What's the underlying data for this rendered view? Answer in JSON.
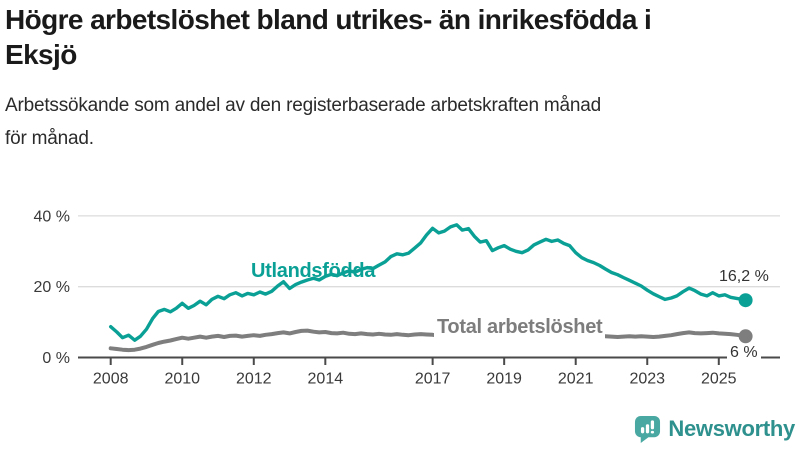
{
  "header": {
    "title_lines": [
      "Högre arbetslöshet bland utrikes- än inrikesfödda i",
      "Eksjö"
    ],
    "subtitle_lines": [
      "Arbetssökande som andel av den registerbaserade arbetskraften månad",
      "för månad."
    ]
  },
  "colors": {
    "accent_teal": "#0aa096",
    "line_gray": "#7e7e7e",
    "axis": "#4a4a4a",
    "grid": "#dcdcdc",
    "tick_text": "#3a3a3a",
    "logo_icon": "#4aa8a2",
    "logo_text": "#2f918e"
  },
  "branding": {
    "logo_text": "Newsworthy"
  },
  "chart_data": {
    "type": "line",
    "title": "Högre arbetslöshet bland utrikes- än inrikesfödda i Eksjö",
    "xlabel": "",
    "ylabel": "",
    "grid": "horizontal",
    "legend_position": "inline-labels",
    "x_axis": {
      "ticks": [
        2008,
        2010,
        2012,
        2014,
        2017,
        2019,
        2021,
        2023,
        2025
      ],
      "labels": [
        "2008",
        "2010",
        "2012",
        "2014",
        "2017",
        "2019",
        "2021",
        "2023",
        "2025"
      ]
    },
    "y_axis": {
      "ticks": [
        0,
        20,
        40
      ],
      "labels": [
        "0 %",
        "20 %",
        "40 %"
      ],
      "range": [
        0,
        42
      ],
      "unit": "%"
    },
    "x": [
      2008.0,
      2008.17,
      2008.33,
      2008.5,
      2008.67,
      2008.83,
      2009.0,
      2009.17,
      2009.33,
      2009.5,
      2009.67,
      2009.83,
      2010.0,
      2010.17,
      2010.33,
      2010.5,
      2010.67,
      2010.83,
      2011.0,
      2011.17,
      2011.33,
      2011.5,
      2011.67,
      2011.83,
      2012.0,
      2012.17,
      2012.33,
      2012.5,
      2012.67,
      2012.83,
      2013.0,
      2013.17,
      2013.33,
      2013.5,
      2013.67,
      2013.83,
      2014.0,
      2014.17,
      2014.33,
      2014.5,
      2014.67,
      2014.83,
      2015.0,
      2015.17,
      2015.33,
      2015.5,
      2015.67,
      2015.83,
      2016.0,
      2016.17,
      2016.33,
      2016.5,
      2016.67,
      2016.83,
      2017.0,
      2017.17,
      2017.33,
      2017.5,
      2017.67,
      2017.83,
      2018.0,
      2018.17,
      2018.33,
      2018.5,
      2018.67,
      2018.83,
      2019.0,
      2019.17,
      2019.33,
      2019.5,
      2019.67,
      2019.83,
      2020.0,
      2020.17,
      2020.33,
      2020.5,
      2020.67,
      2020.83,
      2021.0,
      2021.17,
      2021.33,
      2021.5,
      2021.67,
      2021.83,
      2022.0,
      2022.17,
      2022.33,
      2022.5,
      2022.67,
      2022.83,
      2023.0,
      2023.17,
      2023.33,
      2023.5,
      2023.67,
      2023.83,
      2024.0,
      2024.17,
      2024.33,
      2024.5,
      2024.67,
      2024.83,
      2025.0,
      2025.17,
      2025.33,
      2025.5,
      2025.67,
      2025.75
    ],
    "series": [
      {
        "id": "utlandsfodda",
        "name": "Utlandsfödda",
        "color": "#0aa096",
        "width": 3.4,
        "end_label": "16,2 %",
        "values": [
          8.7,
          7.2,
          5.6,
          6.3,
          4.9,
          6.0,
          8.0,
          11.0,
          13.0,
          13.6,
          12.9,
          13.9,
          15.3,
          13.9,
          14.7,
          15.9,
          14.9,
          16.4,
          17.3,
          16.6,
          17.7,
          18.3,
          17.4,
          18.1,
          17.7,
          18.5,
          17.9,
          18.7,
          20.2,
          21.4,
          19.5,
          20.6,
          21.3,
          21.9,
          22.4,
          21.9,
          22.9,
          23.5,
          23.1,
          23.9,
          24.5,
          24.1,
          24.9,
          25.4,
          25.1,
          26.1,
          27.0,
          28.5,
          29.3,
          29.0,
          29.5,
          30.9,
          32.4,
          34.6,
          36.5,
          35.2,
          35.7,
          36.9,
          37.5,
          36.0,
          36.4,
          34.2,
          32.6,
          33.0,
          30.2,
          31.0,
          31.6,
          30.6,
          30.0,
          29.6,
          30.4,
          31.8,
          32.6,
          33.4,
          32.8,
          33.2,
          32.2,
          31.6,
          29.6,
          28.2,
          27.4,
          26.8,
          26.0,
          25.0,
          24.0,
          23.4,
          22.6,
          21.8,
          21.0,
          20.2,
          19.0,
          18.0,
          17.2,
          16.4,
          16.8,
          17.4,
          18.6,
          19.6,
          18.9,
          17.9,
          17.4,
          18.3,
          17.4,
          17.7,
          17.0,
          16.7,
          16.4,
          16.2
        ]
      },
      {
        "id": "total",
        "name": "Total arbetslöshet",
        "color": "#7e7e7e",
        "width": 4,
        "end_label": "6 %",
        "values": [
          2.6,
          2.4,
          2.2,
          2.1,
          2.2,
          2.5,
          3.0,
          3.6,
          4.1,
          4.5,
          4.8,
          5.2,
          5.6,
          5.3,
          5.6,
          5.9,
          5.6,
          5.9,
          6.1,
          5.8,
          6.1,
          6.2,
          5.9,
          6.1,
          6.3,
          6.1,
          6.4,
          6.6,
          6.9,
          7.1,
          6.8,
          7.2,
          7.5,
          7.6,
          7.3,
          7.1,
          7.2,
          6.9,
          6.8,
          7.0,
          6.7,
          6.6,
          6.8,
          6.6,
          6.5,
          6.7,
          6.5,
          6.4,
          6.6,
          6.4,
          6.3,
          6.5,
          6.6,
          6.5,
          6.4,
          6.2,
          6.3,
          6.5,
          6.6,
          6.5,
          6.6,
          6.4,
          6.3,
          6.2,
          6.0,
          5.9,
          5.8,
          5.9,
          6.1,
          6.2,
          6.3,
          6.5,
          6.7,
          7.1,
          7.4,
          7.3,
          7.1,
          7.0,
          6.9,
          6.7,
          6.5,
          6.3,
          6.1,
          6.0,
          5.9,
          5.8,
          5.9,
          6.0,
          5.9,
          6.0,
          5.9,
          5.8,
          5.9,
          6.1,
          6.3,
          6.6,
          6.9,
          7.1,
          6.9,
          6.8,
          6.9,
          7.0,
          6.8,
          6.7,
          6.6,
          6.4,
          6.2,
          6.0
        ]
      }
    ]
  }
}
